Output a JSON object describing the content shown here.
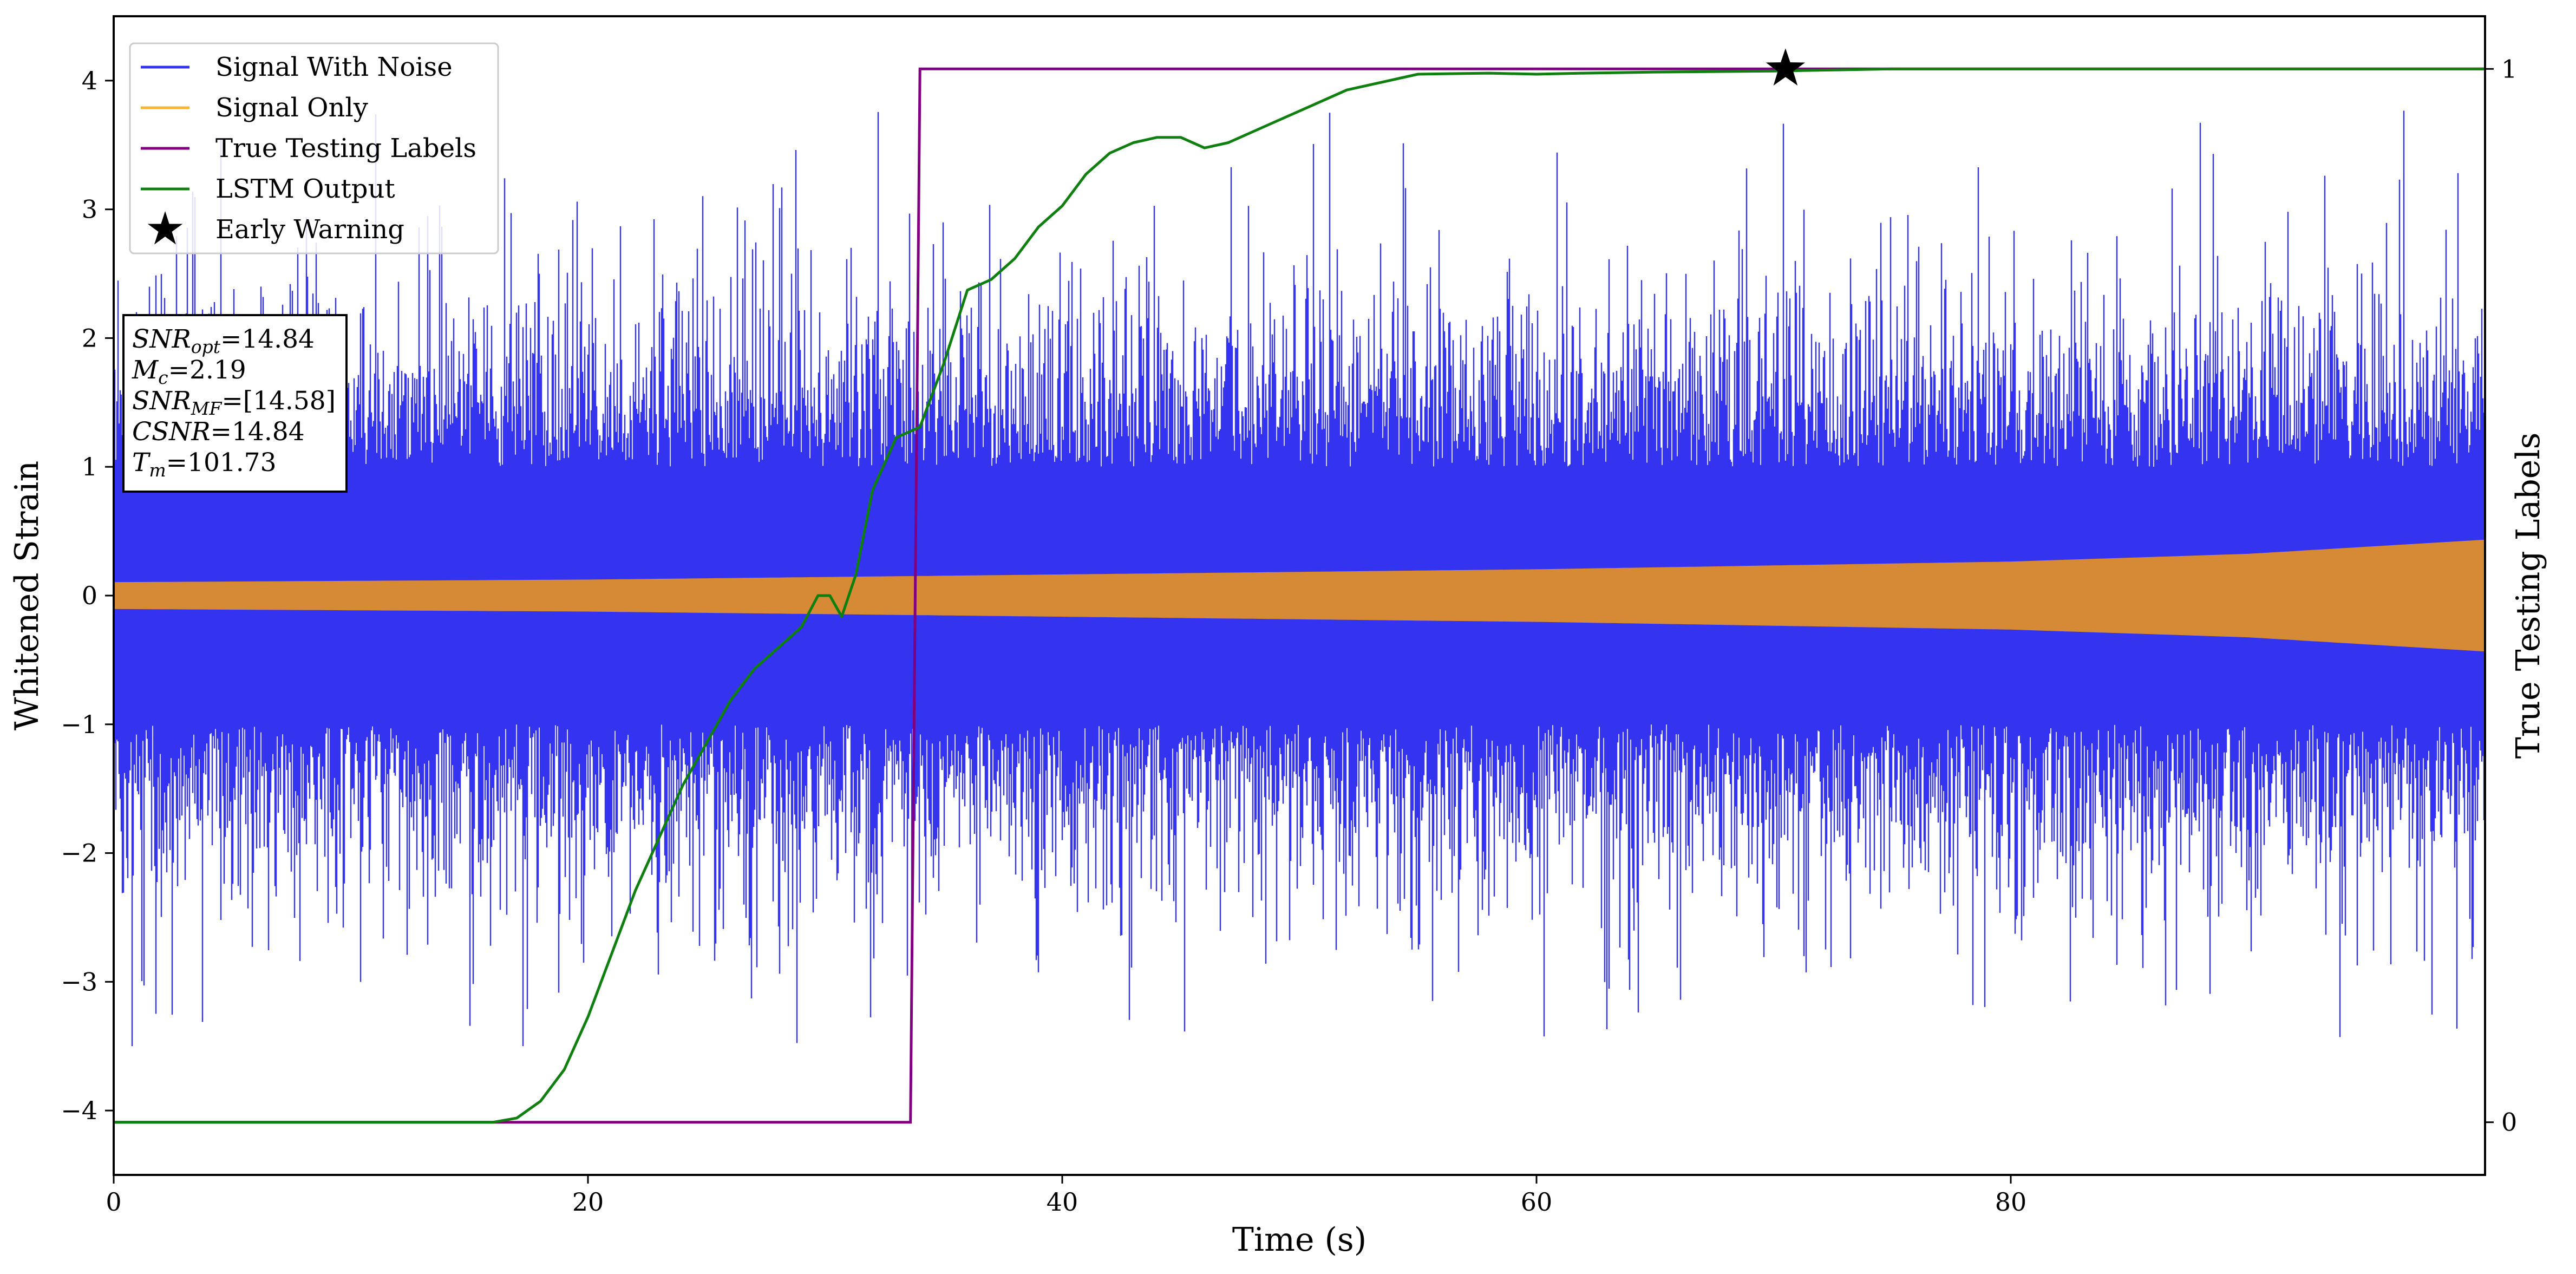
{
  "chart_data": {
    "type": "line",
    "xlabel": "Time (s)",
    "ylabel": "Whitened Strain",
    "y2label": "True Testing Labels",
    "xlim": [
      0,
      100
    ],
    "ylim": [
      -4.5,
      4.5
    ],
    "y2lim": [
      -0.05,
      1.05
    ],
    "x_ticks": [
      0,
      20,
      40,
      60,
      80
    ],
    "y_ticks": [
      -4,
      -3,
      -2,
      -1,
      0,
      1,
      2,
      3,
      4
    ],
    "y2_ticks": [
      0,
      1
    ],
    "grid": false,
    "legend_position": "top-left",
    "colors": {
      "noise": "#3434f0",
      "signal": "#d68a36",
      "labels": "#800080",
      "lstm": "#0f7f0f",
      "star": "#000000"
    },
    "series": [
      {
        "name": "Signal With Noise",
        "axis": "left",
        "kind": "noise-band",
        "summary": {
          "core_min": -1.5,
          "core_max": 1.5,
          "peak_min": -3.5,
          "peak_max": 3.8
        }
      },
      {
        "name": "Signal Only",
        "axis": "left",
        "kind": "chirp-envelope",
        "x": [
          0,
          20,
          40,
          60,
          80,
          90,
          100
        ],
        "amplitude": [
          0.1,
          0.12,
          0.16,
          0.2,
          0.26,
          0.32,
          0.43
        ]
      },
      {
        "name": "True Testing Labels",
        "axis": "right",
        "x": [
          0,
          33.6,
          34.0,
          100
        ],
        "y": [
          0,
          0,
          1,
          1
        ]
      },
      {
        "name": "LSTM Output",
        "axis": "right",
        "x": [
          0,
          16,
          17,
          18,
          19,
          20,
          21,
          22,
          23,
          24,
          25,
          26,
          27,
          28,
          29,
          29.7,
          30.2,
          30.7,
          31.3,
          32,
          33,
          34,
          35,
          36,
          37,
          38,
          39,
          40,
          41,
          42,
          43,
          44,
          45,
          46,
          47,
          48,
          49,
          50,
          52,
          55,
          58,
          60,
          62,
          65,
          70,
          75,
          80,
          90,
          100
        ],
        "y": [
          0,
          0,
          0.004,
          0.02,
          0.05,
          0.1,
          0.16,
          0.22,
          0.27,
          0.32,
          0.36,
          0.4,
          0.43,
          0.45,
          0.47,
          0.5,
          0.5,
          0.48,
          0.52,
          0.6,
          0.65,
          0.66,
          0.72,
          0.79,
          0.8,
          0.82,
          0.85,
          0.87,
          0.9,
          0.92,
          0.93,
          0.935,
          0.935,
          0.925,
          0.93,
          0.94,
          0.95,
          0.96,
          0.98,
          0.995,
          0.996,
          0.995,
          0.996,
          0.997,
          0.998,
          1.0,
          1.0,
          1.0,
          1.0
        ]
      }
    ],
    "markers": [
      {
        "name": "Early Warning",
        "x": 70.5,
        "y2": 1.0,
        "shape": "star"
      }
    ],
    "legend": [
      {
        "label": "Signal With Noise",
        "style": "line",
        "color": "#3434f0"
      },
      {
        "label": "Signal Only",
        "style": "line",
        "color": "#f5b53b"
      },
      {
        "label": "True Testing Labels",
        "style": "line",
        "color": "#800080"
      },
      {
        "label": "LSTM Output",
        "style": "line",
        "color": "#0f7f0f"
      },
      {
        "label": "Early Warning",
        "style": "star",
        "color": "#000000"
      }
    ],
    "info_box": [
      {
        "base": "SNR",
        "sub": "opt",
        "value": "=14.84"
      },
      {
        "base": "M",
        "sub": "c",
        "value": "=2.19"
      },
      {
        "base": "SNR",
        "sub": "MF",
        "value": "=[14.58]"
      },
      {
        "base": "CSNR",
        "sub": "",
        "value": "=14.84"
      },
      {
        "base": "T",
        "sub": "m",
        "value": "=101.73"
      }
    ]
  }
}
